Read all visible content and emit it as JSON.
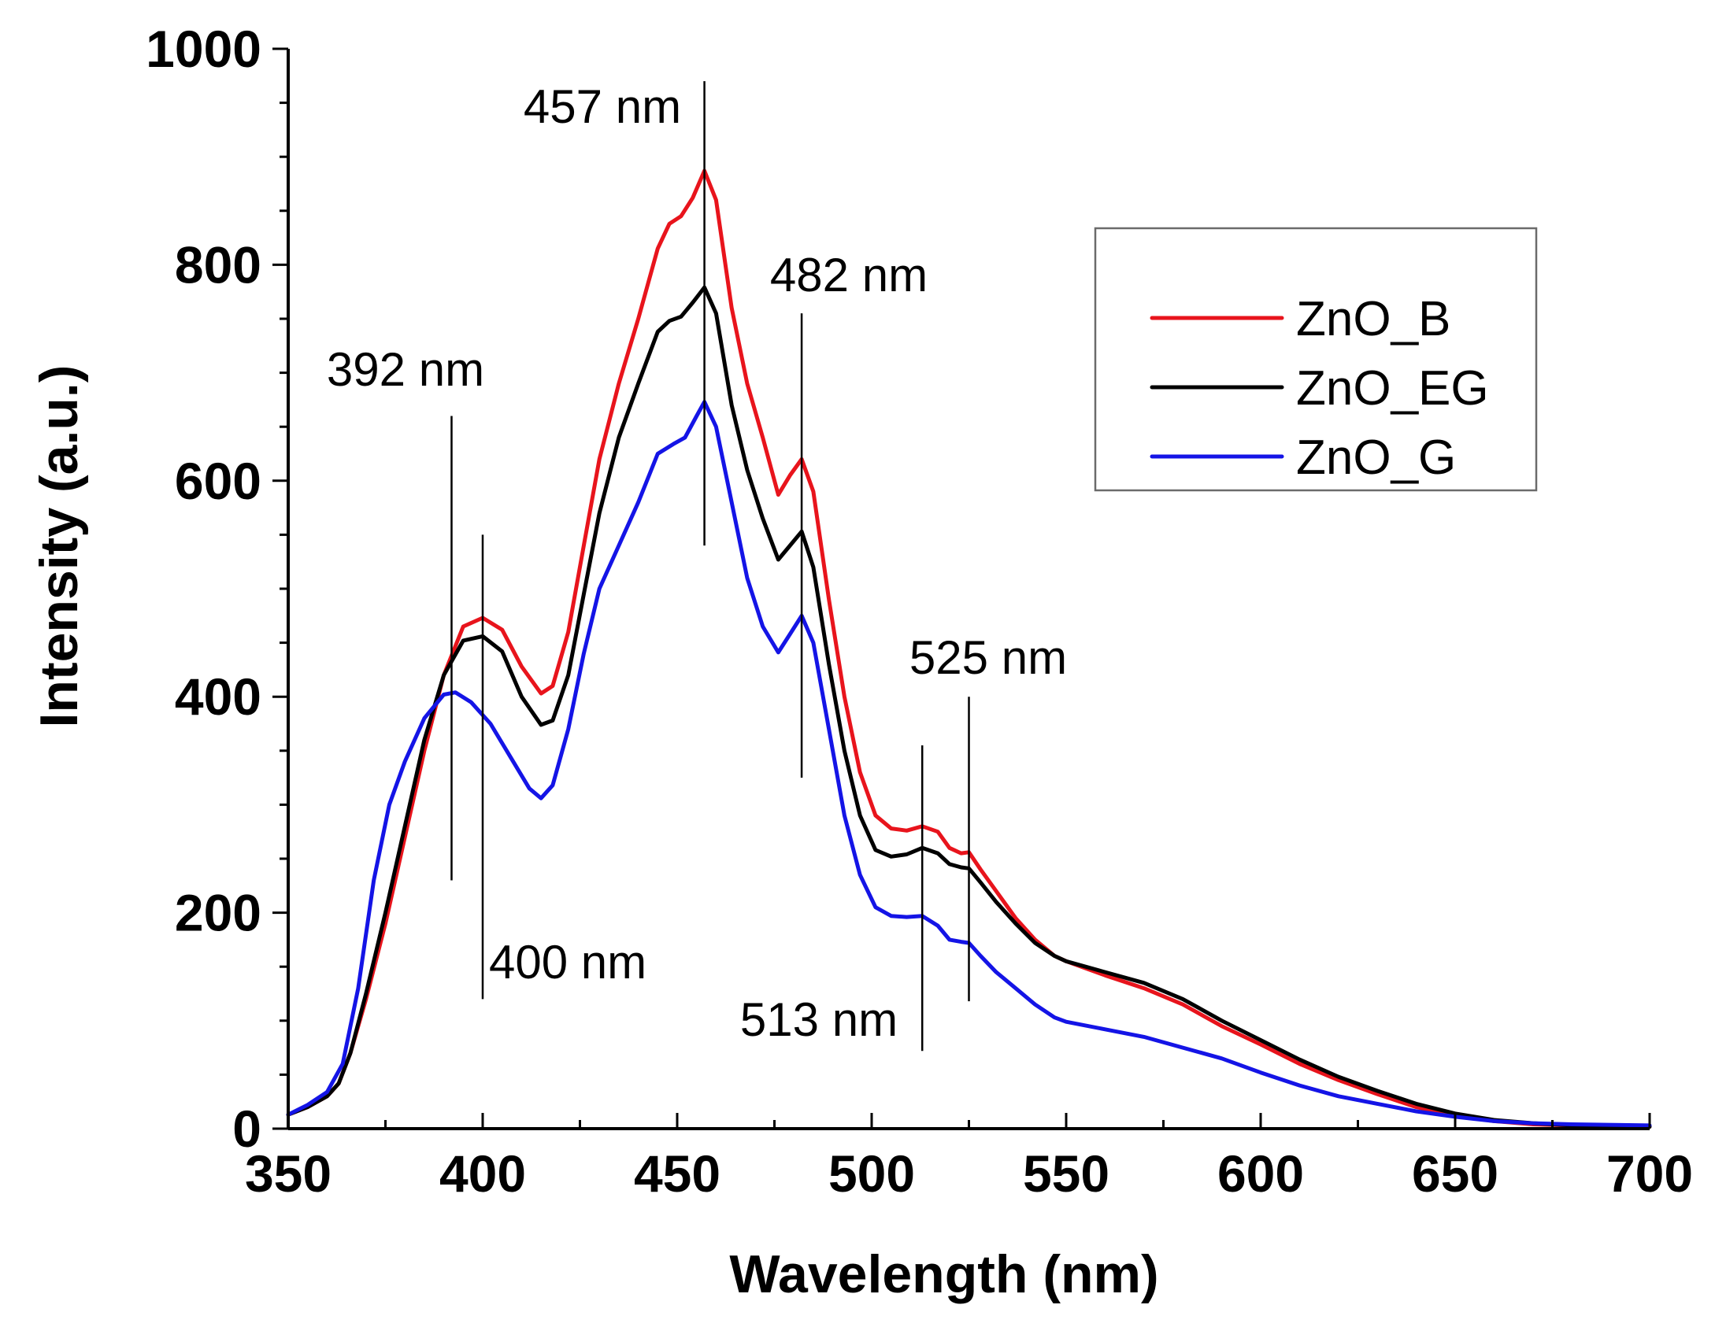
{
  "chart_data": {
    "type": "line",
    "title": "",
    "xlabel": "Wavelength (nm)",
    "ylabel": "Intensity (a.u.)",
    "xlim": [
      350,
      700
    ],
    "ylim": [
      0,
      1000
    ],
    "xticks": [
      "350",
      "400",
      "450",
      "500",
      "550",
      "600",
      "650",
      "700"
    ],
    "yticks": [
      "0",
      "200",
      "400",
      "600",
      "800",
      "1000"
    ],
    "grid": false,
    "legend_position": "top-right",
    "series": [
      {
        "name": "ZnO_B",
        "color": "#e8141c",
        "points": [
          [
            350,
            13
          ],
          [
            355,
            20
          ],
          [
            360,
            30
          ],
          [
            363,
            42
          ],
          [
            366,
            70
          ],
          [
            370,
            120
          ],
          [
            375,
            190
          ],
          [
            380,
            270
          ],
          [
            385,
            350
          ],
          [
            390,
            420
          ],
          [
            395,
            465
          ],
          [
            400,
            473
          ],
          [
            405,
            462
          ],
          [
            410,
            428
          ],
          [
            415,
            403
          ],
          [
            418,
            410
          ],
          [
            422,
            460
          ],
          [
            426,
            540
          ],
          [
            430,
            620
          ],
          [
            435,
            690
          ],
          [
            440,
            750
          ],
          [
            445,
            815
          ],
          [
            448,
            838
          ],
          [
            451,
            845
          ],
          [
            454,
            862
          ],
          [
            457,
            887
          ],
          [
            460,
            860
          ],
          [
            464,
            760
          ],
          [
            468,
            690
          ],
          [
            472,
            640
          ],
          [
            476,
            587
          ],
          [
            479,
            605
          ],
          [
            482,
            620
          ],
          [
            485,
            590
          ],
          [
            489,
            490
          ],
          [
            493,
            400
          ],
          [
            497,
            330
          ],
          [
            501,
            290
          ],
          [
            505,
            278
          ],
          [
            509,
            276
          ],
          [
            513,
            280
          ],
          [
            517,
            275
          ],
          [
            520,
            260
          ],
          [
            523,
            255
          ],
          [
            525,
            256
          ],
          [
            528,
            240
          ],
          [
            532,
            220
          ],
          [
            537,
            195
          ],
          [
            542,
            175
          ],
          [
            547,
            160
          ],
          [
            550,
            155
          ],
          [
            560,
            142
          ],
          [
            570,
            130
          ],
          [
            580,
            115
          ],
          [
            590,
            95
          ],
          [
            600,
            78
          ],
          [
            610,
            60
          ],
          [
            620,
            45
          ],
          [
            630,
            32
          ],
          [
            640,
            20
          ],
          [
            650,
            12
          ],
          [
            660,
            7
          ],
          [
            670,
            4
          ],
          [
            680,
            3
          ],
          [
            700,
            2
          ]
        ]
      },
      {
        "name": "ZnO_EG",
        "color": "#000000",
        "points": [
          [
            350,
            13
          ],
          [
            355,
            20
          ],
          [
            360,
            30
          ],
          [
            363,
            42
          ],
          [
            366,
            70
          ],
          [
            370,
            125
          ],
          [
            375,
            200
          ],
          [
            380,
            280
          ],
          [
            385,
            360
          ],
          [
            390,
            420
          ],
          [
            395,
            452
          ],
          [
            400,
            456
          ],
          [
            405,
            442
          ],
          [
            410,
            400
          ],
          [
            415,
            374
          ],
          [
            418,
            378
          ],
          [
            422,
            420
          ],
          [
            426,
            495
          ],
          [
            430,
            570
          ],
          [
            435,
            640
          ],
          [
            440,
            690
          ],
          [
            445,
            738
          ],
          [
            448,
            748
          ],
          [
            451,
            752
          ],
          [
            454,
            765
          ],
          [
            457,
            779
          ],
          [
            460,
            755
          ],
          [
            464,
            670
          ],
          [
            468,
            610
          ],
          [
            472,
            565
          ],
          [
            476,
            527
          ],
          [
            479,
            540
          ],
          [
            482,
            553
          ],
          [
            485,
            520
          ],
          [
            489,
            430
          ],
          [
            493,
            350
          ],
          [
            497,
            290
          ],
          [
            501,
            258
          ],
          [
            505,
            252
          ],
          [
            509,
            254
          ],
          [
            513,
            260
          ],
          [
            517,
            255
          ],
          [
            520,
            245
          ],
          [
            523,
            242
          ],
          [
            525,
            241
          ],
          [
            528,
            228
          ],
          [
            532,
            210
          ],
          [
            537,
            190
          ],
          [
            542,
            172
          ],
          [
            547,
            160
          ],
          [
            550,
            155
          ],
          [
            560,
            145
          ],
          [
            570,
            135
          ],
          [
            580,
            120
          ],
          [
            590,
            100
          ],
          [
            600,
            82
          ],
          [
            610,
            64
          ],
          [
            620,
            48
          ],
          [
            630,
            35
          ],
          [
            640,
            23
          ],
          [
            650,
            14
          ],
          [
            660,
            8
          ],
          [
            670,
            5
          ],
          [
            680,
            3
          ],
          [
            700,
            2
          ]
        ]
      },
      {
        "name": "ZnO_G",
        "color": "#1414e6",
        "points": [
          [
            350,
            13
          ],
          [
            355,
            22
          ],
          [
            360,
            34
          ],
          [
            364,
            60
          ],
          [
            368,
            130
          ],
          [
            372,
            230
          ],
          [
            376,
            300
          ],
          [
            380,
            340
          ],
          [
            385,
            380
          ],
          [
            390,
            402
          ],
          [
            393,
            404
          ],
          [
            397,
            395
          ],
          [
            402,
            375
          ],
          [
            407,
            345
          ],
          [
            412,
            315
          ],
          [
            415,
            306
          ],
          [
            418,
            318
          ],
          [
            422,
            370
          ],
          [
            426,
            440
          ],
          [
            430,
            500
          ],
          [
            435,
            540
          ],
          [
            440,
            580
          ],
          [
            445,
            625
          ],
          [
            449,
            634
          ],
          [
            452,
            640
          ],
          [
            455,
            660
          ],
          [
            457,
            673
          ],
          [
            460,
            650
          ],
          [
            464,
            580
          ],
          [
            468,
            510
          ],
          [
            472,
            465
          ],
          [
            476,
            441
          ],
          [
            479,
            458
          ],
          [
            482,
            475
          ],
          [
            485,
            450
          ],
          [
            489,
            370
          ],
          [
            493,
            290
          ],
          [
            497,
            235
          ],
          [
            501,
            205
          ],
          [
            505,
            197
          ],
          [
            509,
            196
          ],
          [
            513,
            197
          ],
          [
            517,
            188
          ],
          [
            520,
            175
          ],
          [
            523,
            173
          ],
          [
            525,
            172
          ],
          [
            528,
            160
          ],
          [
            532,
            145
          ],
          [
            537,
            130
          ],
          [
            542,
            115
          ],
          [
            547,
            103
          ],
          [
            550,
            99
          ],
          [
            560,
            92
          ],
          [
            570,
            85
          ],
          [
            580,
            75
          ],
          [
            590,
            65
          ],
          [
            600,
            52
          ],
          [
            610,
            40
          ],
          [
            620,
            30
          ],
          [
            630,
            23
          ],
          [
            640,
            16
          ],
          [
            650,
            11
          ],
          [
            660,
            7
          ],
          [
            670,
            5
          ],
          [
            680,
            4
          ],
          [
            700,
            3
          ]
        ]
      }
    ],
    "annotations": [
      {
        "label": "392 nm",
        "x": 392,
        "y_from": 230,
        "y_to": 660
      },
      {
        "label": "400 nm",
        "x": 400,
        "y_from": 120,
        "y_to": 550
      },
      {
        "label": "457 nm",
        "x": 457,
        "y_from": 540,
        "y_to": 970
      },
      {
        "label": "482 nm",
        "x": 482,
        "y_from": 325,
        "y_to": 755
      },
      {
        "label": "513 nm",
        "x": 513,
        "y_from": 72,
        "y_to": 355
      },
      {
        "label": "525 nm",
        "x": 525,
        "y_from": 118,
        "y_to": 400
      }
    ]
  }
}
